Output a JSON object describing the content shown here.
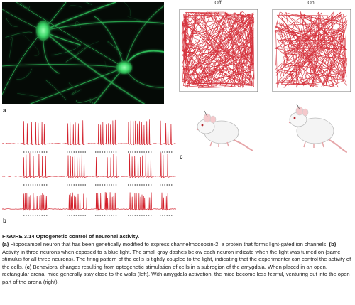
{
  "panels": {
    "a": {
      "letter": "a"
    },
    "b": {
      "letter": "b",
      "traces": 3
    },
    "c": {
      "letter": "c",
      "arenas": [
        {
          "label": "Off"
        },
        {
          "label": "On"
        }
      ]
    }
  },
  "caption": {
    "figure_title": "FIGURE 3.14  Optogenetic control of neuronal activity.",
    "parts": [
      {
        "label": "(a)",
        "text": " Hippocampal neuron that has been genetically modified to express channelrhodopsin-2, a protein that forms light-gated ion channels. "
      },
      {
        "label": "(b)",
        "text": " Activity in three neurons when exposed to a blue light. The small gray dashes below each neuron indicate when the light was turned on (same stimulus for all three neurons). The firing pattern of the cells is tightly coupled to the light, indicating that the experimenter can control the activity of the cells. "
      },
      {
        "label": "(c)",
        "text": " Behavioral changes resulting from optogenetic stimulation of cells in a subregion of the amygdala. When placed in an open, rectangular arena, mice generally stay close to the walls (left). With amygdala activation, the mice become less fearful, venturing out into the open part of the arena (right)."
      }
    ]
  },
  "colors": {
    "trace": "#d21f2a",
    "neuron_glow": "#3fd96b",
    "background_dark": "#050a06",
    "stim_dash": "#555555"
  }
}
